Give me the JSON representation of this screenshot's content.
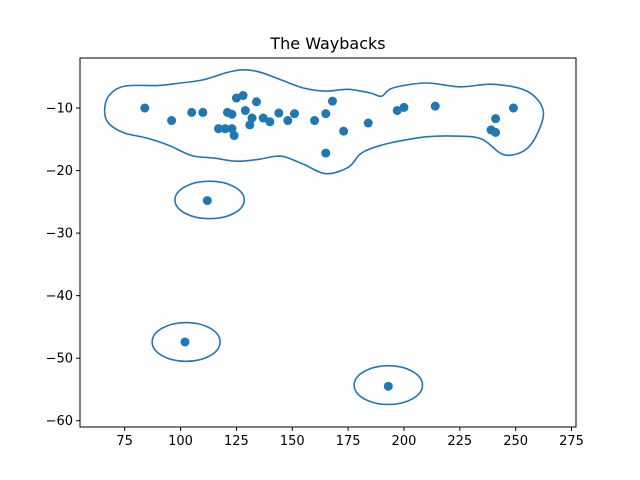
{
  "chart_data": {
    "type": "scatter",
    "title": "The Waybacks",
    "xlabel": "",
    "ylabel": "",
    "xlim": [
      55,
      277
    ],
    "ylim": [
      -61,
      -2
    ],
    "x_ticks": [
      75,
      100,
      125,
      150,
      175,
      200,
      225,
      250,
      275
    ],
    "y_ticks": [
      -10,
      -20,
      -30,
      -40,
      -50,
      -60
    ],
    "grid": false,
    "marker_color": "#1f77b4",
    "outline_color": "#1f77b4",
    "points": [
      {
        "x": 84,
        "y": -10.0
      },
      {
        "x": 96,
        "y": -12.0
      },
      {
        "x": 105,
        "y": -10.7
      },
      {
        "x": 110,
        "y": -10.7
      },
      {
        "x": 117,
        "y": -13.3
      },
      {
        "x": 120,
        "y": -13.3
      },
      {
        "x": 121,
        "y": -10.7
      },
      {
        "x": 123,
        "y": -11.0
      },
      {
        "x": 123,
        "y": -13.3
      },
      {
        "x": 124,
        "y": -14.4
      },
      {
        "x": 125,
        "y": -8.4
      },
      {
        "x": 128,
        "y": -8.0
      },
      {
        "x": 129,
        "y": -10.4
      },
      {
        "x": 131,
        "y": -12.7
      },
      {
        "x": 132,
        "y": -11.6
      },
      {
        "x": 134,
        "y": -9.0
      },
      {
        "x": 137,
        "y": -11.6
      },
      {
        "x": 140,
        "y": -12.2
      },
      {
        "x": 144,
        "y": -10.8
      },
      {
        "x": 148,
        "y": -12.0
      },
      {
        "x": 151,
        "y": -10.9
      },
      {
        "x": 160,
        "y": -12.0
      },
      {
        "x": 165,
        "y": -10.9
      },
      {
        "x": 165,
        "y": -17.2
      },
      {
        "x": 168,
        "y": -8.9
      },
      {
        "x": 173,
        "y": -13.7
      },
      {
        "x": 184,
        "y": -12.4
      },
      {
        "x": 197,
        "y": -10.4
      },
      {
        "x": 200,
        "y": -9.9
      },
      {
        "x": 214,
        "y": -9.7
      },
      {
        "x": 239,
        "y": -13.5
      },
      {
        "x": 241,
        "y": -13.9
      },
      {
        "x": 241,
        "y": -11.7
      },
      {
        "x": 249,
        "y": -10.0
      },
      {
        "x": 112,
        "y": -24.8
      },
      {
        "x": 102,
        "y": -47.4
      },
      {
        "x": 193,
        "y": -54.5
      }
    ],
    "outlines": [
      {
        "path": [
          [
            66,
            -10.5
          ],
          [
            68,
            -8
          ],
          [
            75,
            -6.5
          ],
          [
            90,
            -6.4
          ],
          [
            100,
            -6
          ],
          [
            110,
            -5.5
          ],
          [
            120,
            -4.4
          ],
          [
            127,
            -3.9
          ],
          [
            135,
            -4.2
          ],
          [
            145,
            -5.5
          ],
          [
            155,
            -6.8
          ],
          [
            165,
            -7.3
          ],
          [
            175,
            -7.0
          ],
          [
            185,
            -7.6
          ],
          [
            190,
            -8.1
          ],
          [
            195,
            -6.8
          ],
          [
            210,
            -6.0
          ],
          [
            225,
            -6.6
          ],
          [
            240,
            -6.2
          ],
          [
            255,
            -7.3
          ],
          [
            262,
            -10.0
          ],
          [
            261,
            -13.0
          ],
          [
            255,
            -16.5
          ],
          [
            245,
            -17.5
          ],
          [
            235,
            -15.0
          ],
          [
            225,
            -14.5
          ],
          [
            210,
            -14.6
          ],
          [
            195,
            -15.5
          ],
          [
            185,
            -16.5
          ],
          [
            180,
            -17.5
          ],
          [
            175,
            -19.5
          ],
          [
            165,
            -20.5
          ],
          [
            155,
            -19.0
          ],
          [
            145,
            -17.7
          ],
          [
            135,
            -18.2
          ],
          [
            125,
            -18.5
          ],
          [
            115,
            -18.0
          ],
          [
            105,
            -17.6
          ],
          [
            95,
            -16.0
          ],
          [
            85,
            -14.8
          ],
          [
            75,
            -14.0
          ],
          [
            68,
            -12.5
          ]
        ]
      },
      {
        "ellipse": {
          "cx": 113,
          "cy": -24.7,
          "rx": 15.5,
          "ry": 3.0
        }
      },
      {
        "ellipse": {
          "cx": 102.5,
          "cy": -47.4,
          "rx": 15.2,
          "ry": 3.1
        }
      },
      {
        "ellipse": {
          "cx": 193,
          "cy": -54.3,
          "rx": 15.3,
          "ry": 3.1
        }
      }
    ]
  }
}
